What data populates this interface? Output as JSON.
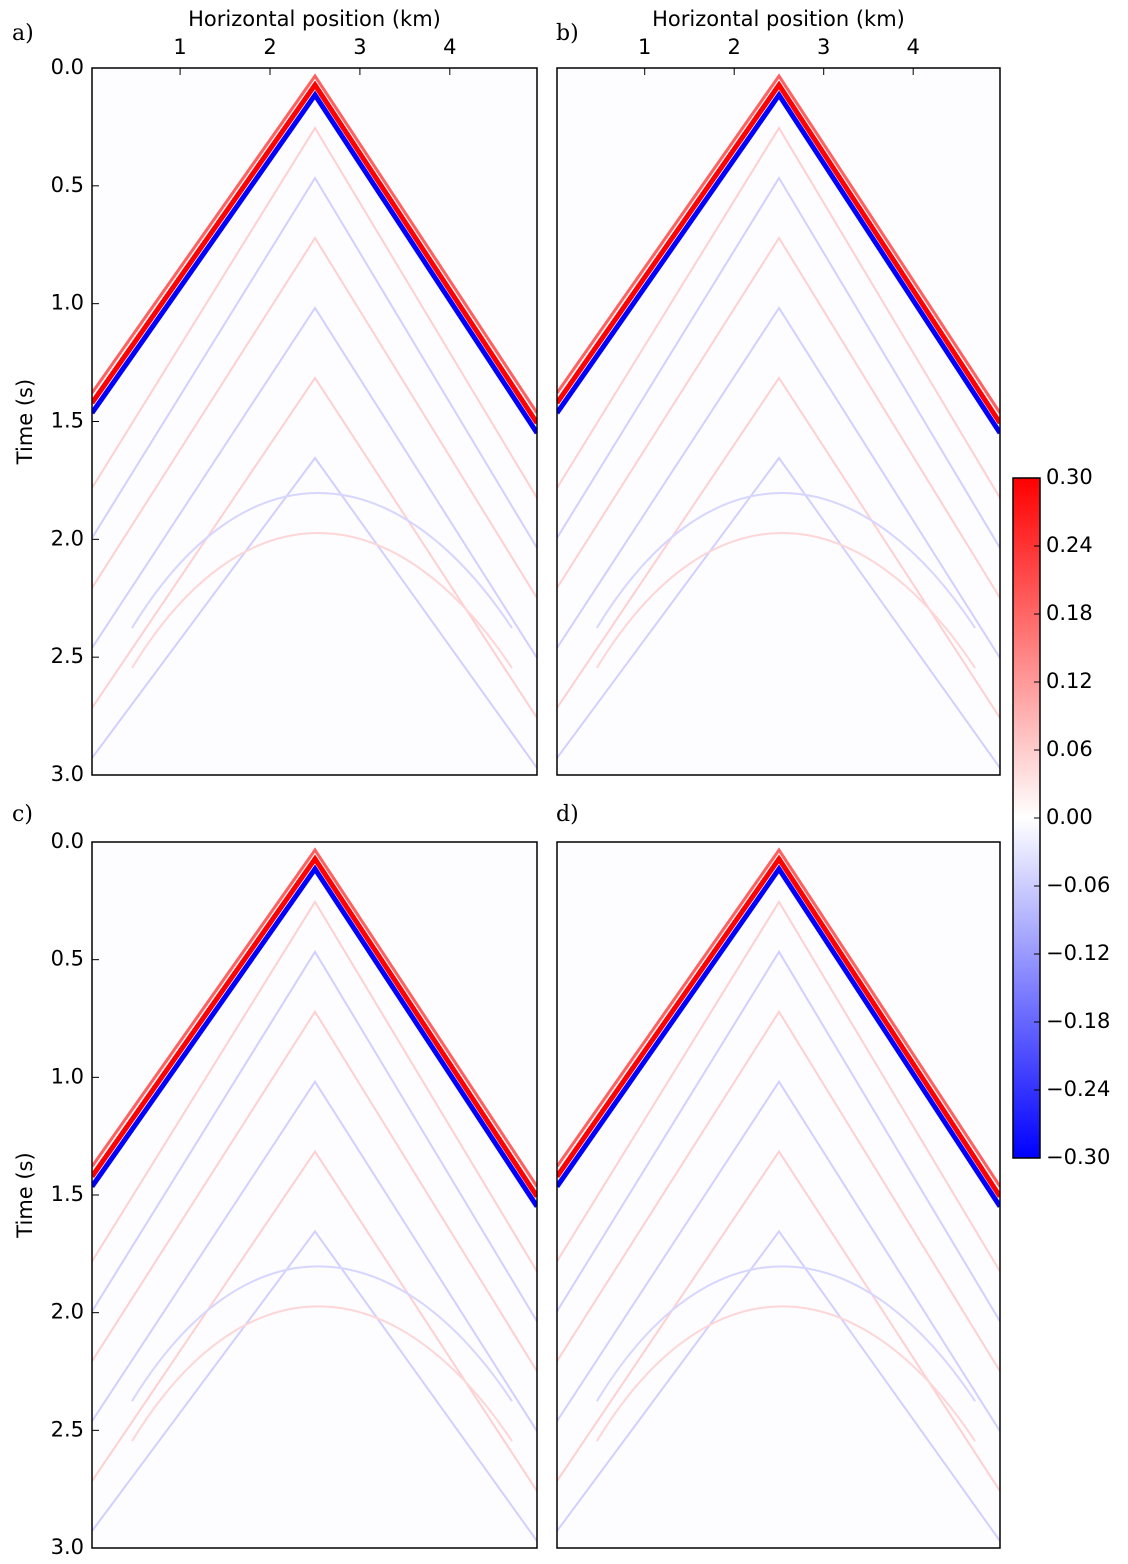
{
  "chart_data": [
    {
      "type": "heatmap",
      "panel_label": "a)",
      "xlabel": "Horizontal position (km)",
      "ylabel": "Time (s)",
      "xlim": [
        0.02,
        4.97
      ],
      "xticks": [
        1,
        2,
        3,
        4
      ],
      "ylim": [
        3,
        0
      ],
      "yticks": [
        {
          "value": 0,
          "label": "0.0"
        },
        0.5,
        {
          "value": 1,
          "label": "1.0"
        },
        1.5,
        {
          "value": 2,
          "label": "2.0"
        },
        2.5,
        {
          "value": 3,
          "label": "3.0"
        }
      ]
    },
    {
      "type": "heatmap",
      "panel_label": "b)",
      "xlabel": "Horizontal position (km)",
      "xlim": [
        0.02,
        4.97
      ],
      "xticks": [
        1,
        2,
        3,
        4
      ],
      "ylim": [
        3,
        0
      ]
    },
    {
      "type": "heatmap",
      "panel_label": "c)",
      "ylabel": "Time (s)",
      "xlim": [
        0.02,
        4.97
      ],
      "ylim": [
        3,
        0
      ],
      "yticks": [
        {
          "value": 0,
          "label": "0.0"
        },
        0.5,
        {
          "value": 1,
          "label": "1.0"
        },
        1.5,
        {
          "value": 2,
          "label": "2.0"
        },
        2.5,
        {
          "value": 3,
          "label": "3.0"
        }
      ]
    },
    {
      "type": "heatmap",
      "panel_label": "d)",
      "xlim": [
        0.02,
        4.97
      ],
      "ylim": [
        3,
        0
      ]
    }
  ],
  "colorbar": {
    "clim": [
      -0.3,
      0.3
    ],
    "colors": [
      "#0000ff",
      "#ffffff",
      "#ff0000"
    ],
    "ticks": [
      {
        "value": 0.3,
        "label": "0.30"
      },
      {
        "value": 0.24,
        "label": "0.24"
      },
      {
        "value": 0.18,
        "label": "0.18"
      },
      {
        "value": 0.12,
        "label": "0.12"
      },
      {
        "value": 0.06,
        "label": "0.06"
      },
      {
        "value": 0,
        "label": "0.00"
      },
      {
        "value": -0.06,
        "label": "−0.06"
      },
      {
        "value": -0.12,
        "label": "−0.12"
      },
      {
        "value": -0.18,
        "label": "−0.18"
      },
      {
        "value": -0.24,
        "label": "−0.24"
      },
      {
        "value": -0.3,
        "label": "−0.30"
      }
    ]
  }
}
